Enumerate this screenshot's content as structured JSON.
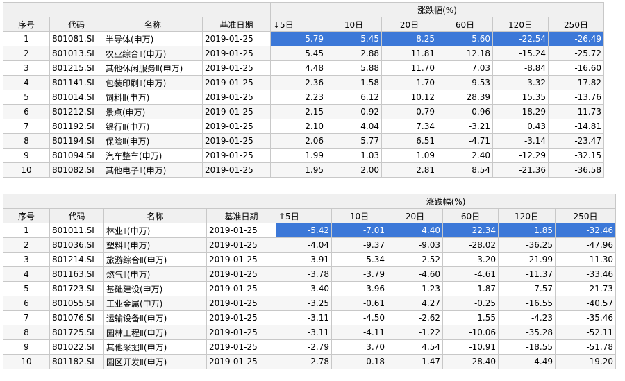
{
  "headers": {
    "seq": "序号",
    "code": "代码",
    "name": "名称",
    "date": "基准日期",
    "change_group": "涨跌幅(%)"
  },
  "top_table": {
    "period_headers": [
      "↓5日",
      "10日",
      "20日",
      "60日",
      "120日",
      "250日"
    ],
    "rows": [
      {
        "seq": "1",
        "code": "801081.SI",
        "name": "半导体(申万)",
        "date": "2019-01-25",
        "values": [
          "5.79",
          "5.45",
          "8.25",
          "5.60",
          "-22.54",
          "-26.49"
        ]
      },
      {
        "seq": "2",
        "code": "801013.SI",
        "name": "农业综合Ⅱ(申万)",
        "date": "2019-01-25",
        "values": [
          "5.45",
          "2.88",
          "11.81",
          "12.18",
          "-15.24",
          "-25.72"
        ]
      },
      {
        "seq": "3",
        "code": "801215.SI",
        "name": "其他休闲服务Ⅱ(申万)",
        "date": "2019-01-25",
        "values": [
          "4.48",
          "5.88",
          "11.70",
          "7.03",
          "-8.84",
          "-16.60"
        ]
      },
      {
        "seq": "4",
        "code": "801141.SI",
        "name": "包装印刷Ⅱ(申万)",
        "date": "2019-01-25",
        "values": [
          "2.36",
          "1.58",
          "1.70",
          "9.53",
          "-3.32",
          "-17.82"
        ]
      },
      {
        "seq": "5",
        "code": "801014.SI",
        "name": "饲料Ⅱ(申万)",
        "date": "2019-01-25",
        "values": [
          "2.23",
          "6.12",
          "10.12",
          "28.39",
          "15.35",
          "-13.76"
        ]
      },
      {
        "seq": "6",
        "code": "801212.SI",
        "name": "景点(申万)",
        "date": "2019-01-25",
        "values": [
          "2.15",
          "0.92",
          "-0.79",
          "-0.96",
          "-18.29",
          "-11.73"
        ]
      },
      {
        "seq": "7",
        "code": "801192.SI",
        "name": "银行Ⅱ(申万)",
        "date": "2019-01-25",
        "values": [
          "2.10",
          "4.04",
          "7.34",
          "-3.21",
          "0.43",
          "-14.81"
        ]
      },
      {
        "seq": "8",
        "code": "801194.SI",
        "name": "保险Ⅱ(申万)",
        "date": "2019-01-25",
        "values": [
          "2.06",
          "5.77",
          "6.51",
          "-4.71",
          "-3.14",
          "-23.47"
        ]
      },
      {
        "seq": "9",
        "code": "801094.SI",
        "name": "汽车整车(申万)",
        "date": "2019-01-25",
        "values": [
          "1.99",
          "1.03",
          "1.09",
          "2.40",
          "-12.29",
          "-32.15"
        ]
      },
      {
        "seq": "10",
        "code": "801082.SI",
        "name": "其他电子Ⅱ(申万)",
        "date": "2019-01-25",
        "values": [
          "1.95",
          "2.00",
          "2.81",
          "8.54",
          "-21.36",
          "-36.58"
        ]
      }
    ]
  },
  "bottom_table": {
    "period_headers": [
      "↑5日",
      "10日",
      "20日",
      "60日",
      "120日",
      "250日"
    ],
    "rows": [
      {
        "seq": "1",
        "code": "801011.SI",
        "name": "林业Ⅱ(申万)",
        "date": "2019-01-25",
        "values": [
          "-5.42",
          "-7.01",
          "4.40",
          "22.34",
          "1.85",
          "-32.46"
        ]
      },
      {
        "seq": "2",
        "code": "801036.SI",
        "name": "塑料Ⅱ(申万)",
        "date": "2019-01-25",
        "values": [
          "-4.04",
          "-9.37",
          "-9.03",
          "-28.02",
          "-36.25",
          "-47.96"
        ]
      },
      {
        "seq": "3",
        "code": "801214.SI",
        "name": "旅游综合Ⅱ(申万)",
        "date": "2019-01-25",
        "values": [
          "-3.91",
          "-5.34",
          "-2.52",
          "3.20",
          "-21.99",
          "-11.30"
        ]
      },
      {
        "seq": "4",
        "code": "801163.SI",
        "name": "燃气Ⅱ(申万)",
        "date": "2019-01-25",
        "values": [
          "-3.78",
          "-3.79",
          "-4.60",
          "-4.61",
          "-11.37",
          "-33.46"
        ]
      },
      {
        "seq": "5",
        "code": "801723.SI",
        "name": "基础建设(申万)",
        "date": "2019-01-25",
        "values": [
          "-3.40",
          "-3.96",
          "-1.23",
          "-1.87",
          "-7.57",
          "-21.73"
        ]
      },
      {
        "seq": "6",
        "code": "801055.SI",
        "name": "工业金属(申万)",
        "date": "2019-01-25",
        "values": [
          "-3.25",
          "-0.61",
          "4.27",
          "-0.25",
          "-16.55",
          "-40.57"
        ]
      },
      {
        "seq": "7",
        "code": "801076.SI",
        "name": "运输设备Ⅱ(申万)",
        "date": "2019-01-25",
        "values": [
          "-3.11",
          "-4.50",
          "-2.62",
          "1.55",
          "-4.23",
          "-35.46"
        ]
      },
      {
        "seq": "8",
        "code": "801725.SI",
        "name": "园林工程Ⅱ(申万)",
        "date": "2019-01-25",
        "values": [
          "-3.11",
          "-4.11",
          "-1.22",
          "-10.06",
          "-35.28",
          "-52.11"
        ]
      },
      {
        "seq": "9",
        "code": "801022.SI",
        "name": "其他采掘Ⅱ(申万)",
        "date": "2019-01-25",
        "values": [
          "-2.79",
          "3.70",
          "4.54",
          "-10.91",
          "-18.55",
          "-51.78"
        ]
      },
      {
        "seq": "10",
        "code": "801182.SI",
        "name": "园区开发Ⅱ(申万)",
        "date": "2019-01-25",
        "values": [
          "-2.78",
          "0.18",
          "-1.47",
          "28.40",
          "4.49",
          "-19.20"
        ]
      }
    ]
  },
  "colors": {
    "selection": "#3c78d8",
    "header_bg": "#f0f0f0",
    "grid": "#c8c8c8"
  }
}
